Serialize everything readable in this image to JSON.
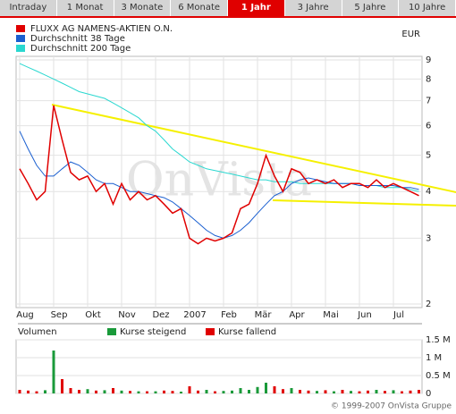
{
  "tabs": [
    "Intraday",
    "1 Monat",
    "3 Monate",
    "6 Monate",
    "1 Jahr",
    "3 Jahre",
    "5 Jahre",
    "10 Jahre"
  ],
  "active_tab": 4,
  "footer": "© 1999-2007 OnVista Gruppe",
  "chart_data": [
    {
      "type": "line",
      "watermark": "OnVista",
      "unit": "EUR",
      "log_scale": true,
      "grid": true,
      "categories": [
        "Aug",
        null,
        null,
        null,
        "Sep",
        null,
        null,
        null,
        "Okt",
        null,
        null,
        null,
        "Nov",
        null,
        null,
        null,
        "Dez",
        null,
        null,
        null,
        "2007",
        null,
        null,
        null,
        "Feb",
        null,
        null,
        null,
        "Mär",
        null,
        null,
        null,
        "Apr",
        null,
        null,
        null,
        "Mai",
        null,
        null,
        null,
        "Jun",
        null,
        null,
        null,
        "Jul",
        null,
        null,
        null
      ],
      "ylim": [
        2,
        9
      ],
      "yticks": [
        2,
        3,
        4,
        5,
        6,
        7,
        8,
        9
      ],
      "series": [
        {
          "name": "FLUXX AG NAMENS-AKTIEN O.N.",
          "color": "#e00000",
          "values": [
            4.6,
            4.2,
            3.8,
            4.0,
            6.8,
            5.5,
            4.5,
            4.3,
            4.4,
            4.0,
            4.2,
            3.7,
            4.2,
            3.8,
            4.0,
            3.8,
            3.9,
            3.7,
            3.5,
            3.6,
            3.0,
            2.9,
            3.0,
            2.95,
            3.0,
            3.1,
            3.6,
            3.7,
            4.2,
            5.0,
            4.4,
            4.0,
            4.6,
            4.5,
            4.2,
            4.3,
            4.2,
            4.3,
            4.1,
            4.2,
            4.2,
            4.1,
            4.3,
            4.1,
            4.2,
            4.1,
            4.0,
            3.9
          ]
        },
        {
          "name": "Durchschnitt 38 Tage",
          "color": "#1a5fd0",
          "values": [
            5.8,
            5.2,
            4.7,
            4.4,
            4.4,
            4.6,
            4.8,
            4.7,
            4.5,
            4.3,
            4.2,
            4.2,
            4.1,
            4.0,
            4.0,
            3.95,
            3.9,
            3.85,
            3.75,
            3.6,
            3.45,
            3.3,
            3.15,
            3.05,
            3.0,
            3.05,
            3.15,
            3.3,
            3.5,
            3.7,
            3.9,
            4.0,
            4.2,
            4.3,
            4.35,
            4.3,
            4.25,
            4.2,
            4.2,
            4.2,
            4.15,
            4.15,
            4.15,
            4.15,
            4.15,
            4.1,
            4.1,
            4.05
          ]
        },
        {
          "name": "Durchschnitt 200 Tage",
          "color": "#2ad8d0",
          "values": [
            8.8,
            8.6,
            8.4,
            8.2,
            8.0,
            7.8,
            7.6,
            7.4,
            7.3,
            7.2,
            7.1,
            6.9,
            6.7,
            6.5,
            6.3,
            6.0,
            5.8,
            5.5,
            5.2,
            5.0,
            4.8,
            4.7,
            4.6,
            4.55,
            4.5,
            4.45,
            4.4,
            4.35,
            4.3,
            4.3,
            4.25,
            4.25,
            4.25,
            4.2,
            4.2,
            4.2,
            4.2,
            4.2,
            4.2,
            4.2,
            4.15,
            4.15,
            4.15,
            4.1,
            4.1,
            4.1,
            4.05,
            4.0
          ]
        }
      ]
    },
    {
      "type": "bar",
      "title": "Volumen",
      "ylim": [
        0,
        1500000
      ],
      "yticks": [
        0,
        {
          "value": 500000,
          "label": "0.5 M"
        },
        {
          "value": 1000000,
          "label": "1 M"
        },
        {
          "value": 1500000,
          "label": "1.5 M"
        }
      ],
      "series": [
        {
          "name": "Kurse steigend",
          "color": "#1a9a3a",
          "values": [
            null,
            null,
            null,
            90000,
            1200000,
            null,
            null,
            null,
            120000,
            null,
            90000,
            null,
            80000,
            null,
            60000,
            null,
            60000,
            null,
            null,
            50000,
            null,
            null,
            100000,
            null,
            70000,
            80000,
            150000,
            100000,
            180000,
            300000,
            null,
            null,
            150000,
            null,
            null,
            70000,
            null,
            60000,
            null,
            70000,
            null,
            null,
            100000,
            null,
            90000,
            null,
            null,
            null
          ]
        },
        {
          "name": "Kurse fallend",
          "color": "#e00000",
          "values": [
            100000,
            80000,
            60000,
            null,
            null,
            400000,
            150000,
            100000,
            null,
            80000,
            null,
            150000,
            null,
            70000,
            null,
            60000,
            null,
            80000,
            70000,
            null,
            200000,
            80000,
            null,
            60000,
            null,
            null,
            null,
            null,
            null,
            null,
            200000,
            120000,
            null,
            100000,
            80000,
            null,
            90000,
            null,
            100000,
            null,
            60000,
            80000,
            null,
            70000,
            null,
            60000,
            80000,
            100000
          ]
        }
      ]
    }
  ]
}
